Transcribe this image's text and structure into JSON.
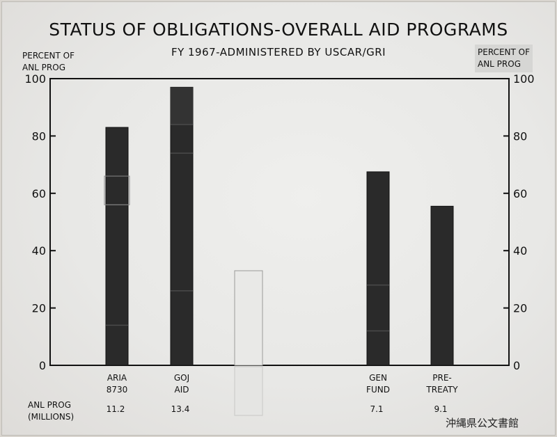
{
  "chart_data": {
    "type": "bar",
    "title": "STATUS OF OBLIGATIONS-OVERALL AID PROGRAMS",
    "subtitle": "FY 1967-ADMINISTERED BY USCAR/GRI",
    "ylabel_left": [
      "PERCENT OF",
      "ANL PROG"
    ],
    "ylabel_right": [
      "PERCENT OF",
      "ANL PROG"
    ],
    "ylim": [
      0,
      100
    ],
    "yticks": [
      0,
      20,
      40,
      60,
      80,
      100
    ],
    "categories": [
      {
        "lines": [
          "ARIA",
          "8730"
        ],
        "value": 83,
        "segments": [
          14,
          56
        ],
        "anl_prog": "11.2"
      },
      {
        "lines": [
          "GOJ",
          "AID"
        ],
        "value": 97,
        "segments": [
          26,
          74,
          84
        ],
        "anl_prog": "13.4"
      },
      {
        "lines": [
          "",
          ""
        ],
        "value": 33,
        "segments": [],
        "anl_prog": "",
        "faint": true
      },
      {
        "lines": [
          "GEN",
          "FUND"
        ],
        "value": 67.5,
        "segments": [
          12,
          28
        ],
        "anl_prog": "7.1"
      },
      {
        "lines": [
          "PRE-",
          "TREATY"
        ],
        "value": 55.5,
        "segments": [],
        "anl_prog": "9.1"
      }
    ],
    "anl_prog_label": [
      "ANL PROG",
      "(MILLIONS)"
    ],
    "grid": false
  },
  "watermark": "沖縄県公文書館",
  "colors": {
    "bar": "#2a2a2a",
    "bar_dark": "#1a1a1a",
    "background": "#ececea",
    "ink": "#111111"
  }
}
